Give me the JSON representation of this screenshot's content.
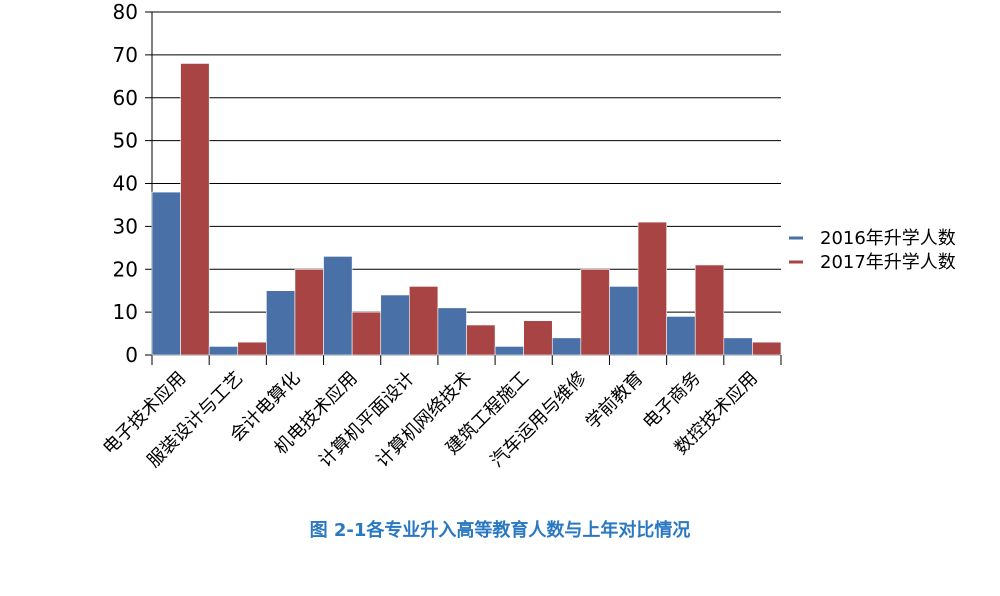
{
  "caption": "图  2-1各专业升入高等教育人数与上年对比情况",
  "colors": {
    "series_2016": "#4a70a8",
    "series_2017": "#a84444",
    "caption": "#2a78c2",
    "grid": "#000000"
  },
  "chart_data": {
    "type": "bar",
    "categories": [
      "电子技术应用",
      "服装设计与工艺",
      "会计电算化",
      "机电技术应用",
      "计算机平面设计",
      "计算机网络技术",
      "建筑工程施工",
      "汽车运用与维修",
      "学前教育",
      "电子商务",
      "数控技术应用"
    ],
    "series": [
      {
        "name": "2016年升学人数",
        "values": [
          38,
          2,
          15,
          23,
          14,
          11,
          2,
          4,
          16,
          9,
          4
        ]
      },
      {
        "name": "2017年升学人数",
        "values": [
          68,
          3,
          20,
          10,
          16,
          7,
          8,
          20,
          31,
          21,
          3
        ]
      }
    ],
    "ylim": [
      0,
      80
    ],
    "yticks": [
      "0",
      "10",
      "20",
      "30",
      "40",
      "50",
      "60",
      "70",
      "80"
    ],
    "grid": true,
    "legend": "right",
    "title": "",
    "xlabel": "",
    "ylabel": ""
  }
}
